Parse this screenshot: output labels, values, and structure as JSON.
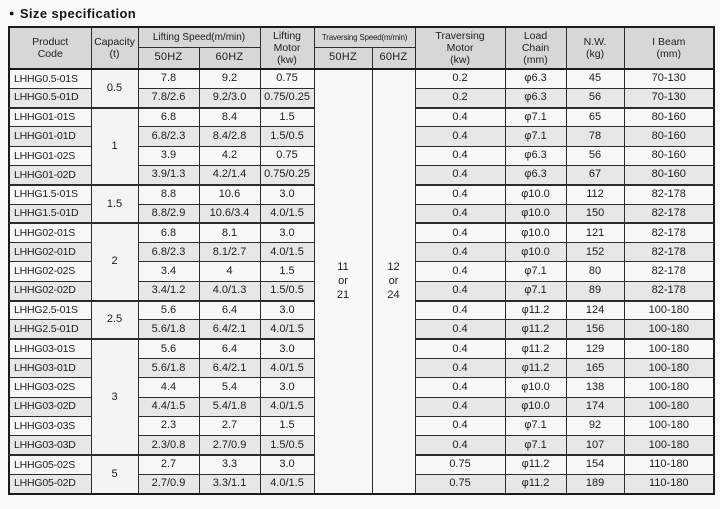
{
  "page": {
    "bullet": "●",
    "title": "Size specification"
  },
  "table": {
    "headers": {
      "product": "Product\nCode",
      "capacity": "Capacity\n(t)",
      "lifting_speed_group": "Lifting Speed(m/min)",
      "hz50": "50HZ",
      "hz60": "60HZ",
      "lifting_motor": "Lifting\nMotor\n(kw)",
      "traversing_speed_group": "Traversing Speed(m/min)",
      "ts_hz50": "50HZ",
      "ts_hz60": "60HZ",
      "traversing_motor": "Traversing\nMotor\n(kw)",
      "load_chain": "Load\nChain\n(mm)",
      "nw": "N.W.\n(kg)",
      "ibeam": "I Beam\n(mm)"
    },
    "traversing_speed": {
      "hz50": "11\nor\n21",
      "hz60": "12\nor\n24"
    },
    "rows": [
      {
        "code": "LHHG0.5-01S",
        "capacity": "0.5",
        "span": 2,
        "l50": "7.8",
        "l60": "9.2",
        "lm": "0.75",
        "tm": "0.2",
        "chain": "φ6.3",
        "nw": "45",
        "ibeam": "70-130"
      },
      {
        "code": "LHHG0.5-01D",
        "l50": "7.8/2.6",
        "l60": "9.2/3.0",
        "lm": "0.75/0.25",
        "tm": "0.2",
        "chain": "φ6.3",
        "nw": "56",
        "ibeam": "70-130"
      },
      {
        "code": "LHHG01-01S",
        "capacity": "1",
        "span": 4,
        "l50": "6.8",
        "l60": "8.4",
        "lm": "1.5",
        "tm": "0.4",
        "chain": "φ7.1",
        "nw": "65",
        "ibeam": "80-160"
      },
      {
        "code": "LHHG01-01D",
        "l50": "6.8/2.3",
        "l60": "8.4/2.8",
        "lm": "1.5/0.5",
        "tm": "0.4",
        "chain": "φ7.1",
        "nw": "78",
        "ibeam": "80-160"
      },
      {
        "code": "LHHG01-02S",
        "l50": "3.9",
        "l60": "4.2",
        "lm": "0.75",
        "tm": "0.4",
        "chain": "φ6.3",
        "nw": "56",
        "ibeam": "80-160"
      },
      {
        "code": "LHHG01-02D",
        "l50": "3.9/1.3",
        "l60": "4.2/1.4",
        "lm": "0.75/0.25",
        "tm": "0.4",
        "chain": "φ6.3",
        "nw": "67",
        "ibeam": "80-160"
      },
      {
        "code": "LHHG1.5-01S",
        "capacity": "1.5",
        "span": 2,
        "l50": "8.8",
        "l60": "10.6",
        "lm": "3.0",
        "tm": "0.4",
        "chain": "φ10.0",
        "nw": "112",
        "ibeam": "82-178"
      },
      {
        "code": "LHHG1.5-01D",
        "l50": "8.8/2.9",
        "l60": "10.6/3.4",
        "lm": "4.0/1.5",
        "tm": "0.4",
        "chain": "φ10.0",
        "nw": "150",
        "ibeam": "82-178"
      },
      {
        "code": "LHHG02-01S",
        "capacity": "2",
        "span": 4,
        "l50": "6.8",
        "l60": "8.1",
        "lm": "3.0",
        "tm": "0.4",
        "chain": "φ10.0",
        "nw": "121",
        "ibeam": "82-178"
      },
      {
        "code": "LHHG02-01D",
        "l50": "6.8/2.3",
        "l60": "8.1/2.7",
        "lm": "4.0/1.5",
        "tm": "0.4",
        "chain": "φ10.0",
        "nw": "152",
        "ibeam": "82-178"
      },
      {
        "code": "LHHG02-02S",
        "l50": "3.4",
        "l60": "4",
        "lm": "1.5",
        "tm": "0.4",
        "chain": "φ7.1",
        "nw": "80",
        "ibeam": "82-178"
      },
      {
        "code": "LHHG02-02D",
        "l50": "3.4/1.2",
        "l60": "4.0/1.3",
        "lm": "1.5/0.5",
        "tm": "0.4",
        "chain": "φ7.1",
        "nw": "89",
        "ibeam": "82-178"
      },
      {
        "code": "LHHG2.5-01S",
        "capacity": "2.5",
        "span": 2,
        "l50": "5.6",
        "l60": "6.4",
        "lm": "3.0",
        "tm": "0.4",
        "chain": "φ11.2",
        "nw": "124",
        "ibeam": "100-180"
      },
      {
        "code": "LHHG2.5-01D",
        "l50": "5.6/1.8",
        "l60": "6.4/2.1",
        "lm": "4.0/1.5",
        "tm": "0.4",
        "chain": "φ11.2",
        "nw": "156",
        "ibeam": "100-180"
      },
      {
        "code": "LHHG03-01S",
        "capacity": "3",
        "span": 6,
        "l50": "5.6",
        "l60": "6.4",
        "lm": "3.0",
        "tm": "0.4",
        "chain": "φ11.2",
        "nw": "129",
        "ibeam": "100-180"
      },
      {
        "code": "LHHG03-01D",
        "l50": "5.6/1.8",
        "l60": "6.4/2.1",
        "lm": "4.0/1.5",
        "tm": "0.4",
        "chain": "φ11.2",
        "nw": "165",
        "ibeam": "100-180"
      },
      {
        "code": "LHHG03-02S",
        "l50": "4.4",
        "l60": "5.4",
        "lm": "3.0",
        "tm": "0.4",
        "chain": "φ10.0",
        "nw": "138",
        "ibeam": "100-180"
      },
      {
        "code": "LHHG03-02D",
        "l50": "4.4/1.5",
        "l60": "5.4/1.8",
        "lm": "4.0/1.5",
        "tm": "0.4",
        "chain": "φ10.0",
        "nw": "174",
        "ibeam": "100-180"
      },
      {
        "code": "LHHG03-03S",
        "l50": "2.3",
        "l60": "2.7",
        "lm": "1.5",
        "tm": "0.4",
        "chain": "φ7.1",
        "nw": "92",
        "ibeam": "100-180"
      },
      {
        "code": "LHHG03-03D",
        "l50": "2.3/0.8",
        "l60": "2.7/0.9",
        "lm": "1.5/0.5",
        "tm": "0.4",
        "chain": "φ7.1",
        "nw": "107",
        "ibeam": "100-180"
      },
      {
        "code": "LHHG05-02S",
        "capacity": "5",
        "span": 2,
        "l50": "2.7",
        "l60": "3.3",
        "lm": "3.0",
        "tm": "0.75",
        "chain": "φ11.2",
        "nw": "154",
        "ibeam": "110-180"
      },
      {
        "code": "LHHG05-02D",
        "l50": "2.7/0.9",
        "l60": "3.3/1.1",
        "lm": "4.0/1.5",
        "tm": "0.75",
        "chain": "φ11.2",
        "nw": "189",
        "ibeam": "110-180"
      }
    ]
  }
}
